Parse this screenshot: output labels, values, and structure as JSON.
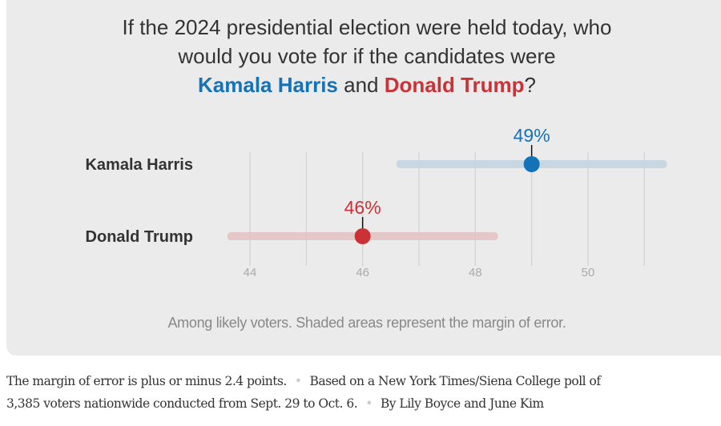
{
  "title": {
    "line1": "If the 2024 presidential election were held today, who",
    "line2": "would you vote for if the candidates were",
    "harris": "Kamala Harris",
    "and": " and ",
    "trump": "Donald Trump",
    "q": "?"
  },
  "chart_data": {
    "type": "dot-range",
    "xlim": [
      43.6,
      51.4
    ],
    "ticks": [
      44,
      46,
      48,
      50
    ],
    "gridlines": [
      44,
      45,
      46,
      47,
      48,
      49,
      50,
      51
    ],
    "margin_of_error": 2.4,
    "series": [
      {
        "name": "Kamala Harris",
        "value": 49,
        "label": "49%",
        "low": 46.6,
        "high": 51.4,
        "color": "#1372b8",
        "band": "#c3d5e3"
      },
      {
        "name": "Donald Trump",
        "value": 46,
        "label": "46%",
        "low": 43.6,
        "high": 48.4,
        "color": "#cc3235",
        "band": "#e3c3c4"
      }
    ]
  },
  "note": "Among likely voters. Shaded areas represent the margin of error.",
  "footer": {
    "part1": "The margin of error is plus or minus 2.4 points.",
    "part2": "Based on a New York Times/Siena College poll of",
    "part3": "3,385 voters nationwide conducted from Sept. 29 to Oct. 6.",
    "part4": "By Lily Boyce and June Kim"
  }
}
